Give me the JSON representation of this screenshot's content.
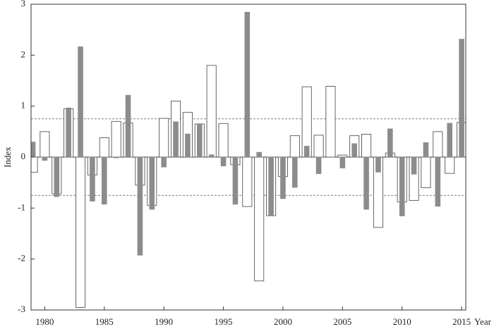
{
  "chart_data": {
    "type": "bar",
    "x_label": "Year",
    "y_label": "Index",
    "x": [
      1979,
      1980,
      1981,
      1982,
      1983,
      1984,
      1985,
      1986,
      1987,
      1988,
      1989,
      1990,
      1991,
      1992,
      1993,
      1994,
      1995,
      1996,
      1997,
      1998,
      1999,
      2000,
      2001,
      2002,
      2003,
      2004,
      2005,
      2006,
      2007,
      2008,
      2009,
      2010,
      2011,
      2012,
      2013,
      2014,
      2015
    ],
    "series": [
      {
        "color": "#ffffff",
        "edge": "#555555",
        "values": [
          -0.3,
          0.5,
          -0.72,
          0.95,
          -2.95,
          -0.35,
          0.38,
          0.7,
          0.67,
          -0.55,
          -0.95,
          0.76,
          1.1,
          0.88,
          0.65,
          1.8,
          0.66,
          -0.15,
          -0.97,
          -2.43,
          -1.15,
          -0.38,
          0.42,
          1.38,
          0.43,
          1.39,
          0.04,
          0.42,
          0.45,
          -1.38,
          0.08,
          -0.88,
          -0.85,
          -0.6,
          0.5,
          -0.32,
          0.68
        ]
      },
      {
        "color": "#8c8c8c",
        "values": [
          0.3,
          -0.07,
          -0.78,
          0.97,
          2.17,
          -0.87,
          -0.93,
          -0.02,
          1.22,
          -1.93,
          -1.03,
          -0.2,
          0.7,
          0.46,
          0.66,
          0.05,
          -0.18,
          -0.93,
          2.85,
          0.1,
          -1.15,
          -0.82,
          -0.6,
          0.22,
          -0.33,
          0,
          -0.22,
          0.27,
          -1.03,
          -0.3,
          0.56,
          -1.16,
          -0.34,
          0.29,
          -0.97,
          0.67,
          2.32
        ]
      }
    ],
    "xlim": [
      1978.85,
      2015.35
    ],
    "xticks": [
      1980,
      1985,
      1990,
      1995,
      2000,
      2005,
      2010,
      2015
    ],
    "ylim": [
      -3,
      3
    ],
    "yticks": [
      -3,
      -2,
      -1,
      0,
      1,
      2,
      3
    ],
    "reference_lines": [
      0.75,
      -0.75
    ]
  }
}
